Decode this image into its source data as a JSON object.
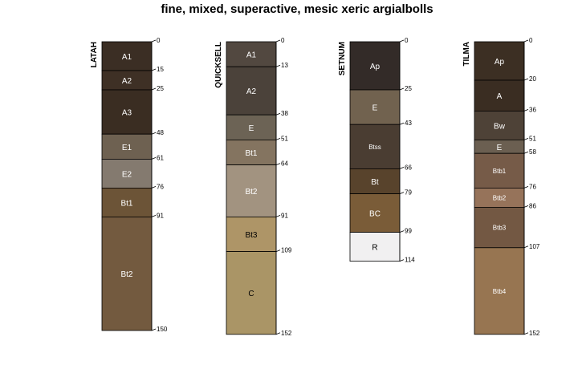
{
  "chart_data": {
    "type": "soil-profile",
    "title": "fine, mixed, superactive, mesic xeric argialbolls",
    "depth_unit": "cm",
    "profiles": [
      {
        "name": "LATAH",
        "horizons": [
          {
            "name": "A1",
            "top": 0,
            "bottom": 15,
            "color": "#3b2e24",
            "label_color": "#ffffff"
          },
          {
            "name": "A2",
            "top": 15,
            "bottom": 25,
            "color": "#3e3025",
            "label_color": "#ffffff"
          },
          {
            "name": "A3",
            "top": 25,
            "bottom": 48,
            "color": "#3a2d22",
            "label_color": "#ffffff"
          },
          {
            "name": "E1",
            "top": 48,
            "bottom": 61,
            "color": "#6e6151",
            "label_color": "#ffffff"
          },
          {
            "name": "E2",
            "top": 61,
            "bottom": 76,
            "color": "#847a6f",
            "label_color": "#ffffff"
          },
          {
            "name": "Bt1",
            "top": 76,
            "bottom": 91,
            "color": "#6c5437",
            "label_color": "#ffffff"
          },
          {
            "name": "Bt2",
            "top": 91,
            "bottom": 150,
            "color": "#735a3f",
            "label_color": "#ffffff"
          }
        ]
      },
      {
        "name": "QUICKSELL",
        "horizons": [
          {
            "name": "A1",
            "top": 0,
            "bottom": 13,
            "color": "#524840",
            "label_color": "#ffffff"
          },
          {
            "name": "A2",
            "top": 13,
            "bottom": 38,
            "color": "#4b423a",
            "label_color": "#ffffff"
          },
          {
            "name": "E",
            "top": 38,
            "bottom": 51,
            "color": "#6c6355",
            "label_color": "#ffffff"
          },
          {
            "name": "Bt1",
            "top": 51,
            "bottom": 64,
            "color": "#847460",
            "label_color": "#ffffff"
          },
          {
            "name": "Bt2",
            "top": 64,
            "bottom": 91,
            "color": "#a29380",
            "label_color": "#ffffff"
          },
          {
            "name": "Bt3",
            "top": 91,
            "bottom": 109,
            "color": "#ae9567",
            "label_color": "#000000"
          },
          {
            "name": "C",
            "top": 109,
            "bottom": 152,
            "color": "#aa9566",
            "label_color": "#000000"
          }
        ]
      },
      {
        "name": "SETNUM",
        "horizons": [
          {
            "name": "Ap",
            "top": 0,
            "bottom": 25,
            "color": "#332b28",
            "label_color": "#ffffff"
          },
          {
            "name": "E",
            "top": 25,
            "bottom": 43,
            "color": "#71624f",
            "label_color": "#ffffff"
          },
          {
            "name": "Btss",
            "top": 43,
            "bottom": 66,
            "color": "#4a3d32",
            "label_color": "#ffffff"
          },
          {
            "name": "Bt",
            "top": 66,
            "bottom": 79,
            "color": "#58432c",
            "label_color": "#ffffff"
          },
          {
            "name": "BC",
            "top": 79,
            "bottom": 99,
            "color": "#7a5c38",
            "label_color": "#ffffff"
          },
          {
            "name": "R",
            "top": 99,
            "bottom": 114,
            "color": "#f1f0f1",
            "label_color": "#000000"
          }
        ]
      },
      {
        "name": "TILMA",
        "horizons": [
          {
            "name": "Ap",
            "top": 0,
            "bottom": 20,
            "color": "#3c2f23",
            "label_color": "#ffffff"
          },
          {
            "name": "A",
            "top": 20,
            "bottom": 36,
            "color": "#3a2d22",
            "label_color": "#ffffff"
          },
          {
            "name": "Bw",
            "top": 36,
            "bottom": 51,
            "color": "#4e4237",
            "label_color": "#ffffff"
          },
          {
            "name": "E",
            "top": 51,
            "bottom": 58,
            "color": "#6b5f51",
            "label_color": "#ffffff"
          },
          {
            "name": "Btb1",
            "top": 58,
            "bottom": 76,
            "color": "#765b48",
            "label_color": "#ffffff"
          },
          {
            "name": "Btb2",
            "top": 76,
            "bottom": 86,
            "color": "#96735a",
            "label_color": "#ffffff"
          },
          {
            "name": "Btb3",
            "top": 86,
            "bottom": 107,
            "color": "#735843",
            "label_color": "#ffffff"
          },
          {
            "name": "Btb4",
            "top": 107,
            "bottom": 152,
            "color": "#977551",
            "label_color": "#ffffff"
          }
        ]
      }
    ]
  }
}
